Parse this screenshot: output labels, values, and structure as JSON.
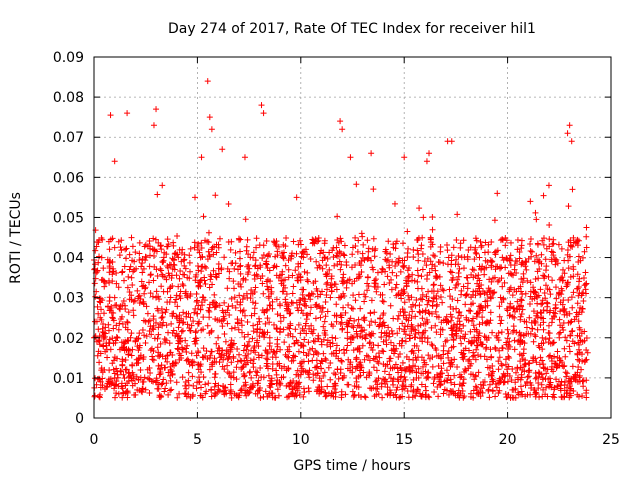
{
  "chart_data": {
    "type": "scatter",
    "title": "Day 274 of 2017, Rate Of TEC Index for receiver hil1",
    "xlabel": "GPS time / hours",
    "ylabel": "ROTI / TECUs",
    "xlim": [
      0,
      25
    ],
    "ylim": [
      0,
      0.09
    ],
    "x_ticks": [
      "0",
      "5",
      "10",
      "15",
      "20",
      "25"
    ],
    "y_ticks": [
      "0",
      "0.01",
      "0.02",
      "0.03",
      "0.04",
      "0.05",
      "0.06",
      "0.07",
      "0.08",
      "0.09"
    ],
    "grid": true,
    "marker": "+",
    "color": "#ff0000",
    "x_range_observed": [
      0,
      23.9
    ],
    "typical_y_range": [
      0.005,
      0.045
    ],
    "median_y": 0.02,
    "series": [
      {
        "x": [
          0.0,
          0.3,
          0.6,
          1.0,
          1.2,
          1.5,
          2.0,
          2.5,
          3.0,
          3.5,
          4.0,
          4.5,
          5.0,
          5.5,
          6.0,
          6.5,
          7.0,
          7.5,
          8.0,
          8.5,
          9.0,
          9.5,
          10.0,
          10.5,
          11.0,
          11.5,
          12.0,
          12.5,
          13.0,
          13.5,
          14.0,
          14.5,
          15.0,
          15.5,
          16.0,
          16.5,
          17.0,
          17.5,
          18.0,
          18.5,
          19.0,
          19.5,
          20.0,
          20.5,
          21.0,
          21.5,
          22.0,
          22.5,
          23.0,
          23.5,
          0.8,
          1.0,
          1.6,
          2.9,
          3.0,
          3.3,
          5.2,
          5.5,
          5.6,
          5.7,
          6.2,
          7.3,
          8.1,
          8.2,
          9.8,
          11.9,
          12.0,
          12.4,
          13.4,
          15.0,
          16.1,
          16.2,
          17.1,
          17.3,
          19.5,
          21.1,
          22.0,
          22.9,
          23.0,
          23.1,
          0.5,
          1.8,
          2.4,
          3.8,
          4.8,
          6.8,
          7.6,
          9.3,
          10.8,
          12.7,
          14.2,
          15.7,
          17.8,
          18.9,
          20.3,
          21.7,
          22.4,
          23.4
        ],
        "y": [
          0.02,
          0.025,
          0.018,
          0.03,
          0.022,
          0.028,
          0.019,
          0.024,
          0.03,
          0.027,
          0.021,
          0.018,
          0.026,
          0.023,
          0.02,
          0.015,
          0.022,
          0.019,
          0.024,
          0.02,
          0.017,
          0.021,
          0.018,
          0.023,
          0.019,
          0.016,
          0.022,
          0.02,
          0.018,
          0.021,
          0.019,
          0.017,
          0.022,
          0.018,
          0.02,
          0.023,
          0.019,
          0.021,
          0.025,
          0.022,
          0.024,
          0.02,
          0.022,
          0.019,
          0.021,
          0.018,
          0.023,
          0.02,
          0.026,
          0.022,
          0.0755,
          0.064,
          0.076,
          0.073,
          0.077,
          0.058,
          0.065,
          0.084,
          0.075,
          0.072,
          0.067,
          0.065,
          0.078,
          0.076,
          0.055,
          0.074,
          0.072,
          0.065,
          0.066,
          0.065,
          0.064,
          0.066,
          0.069,
          0.069,
          0.056,
          0.054,
          0.058,
          0.071,
          0.073,
          0.069,
          0.012,
          0.01,
          0.009,
          0.011,
          0.008,
          0.006,
          0.01,
          0.008,
          0.007,
          0.009,
          0.006,
          0.01,
          0.008,
          0.009,
          0.007,
          0.01,
          0.008,
          0.009
        ]
      }
    ]
  }
}
